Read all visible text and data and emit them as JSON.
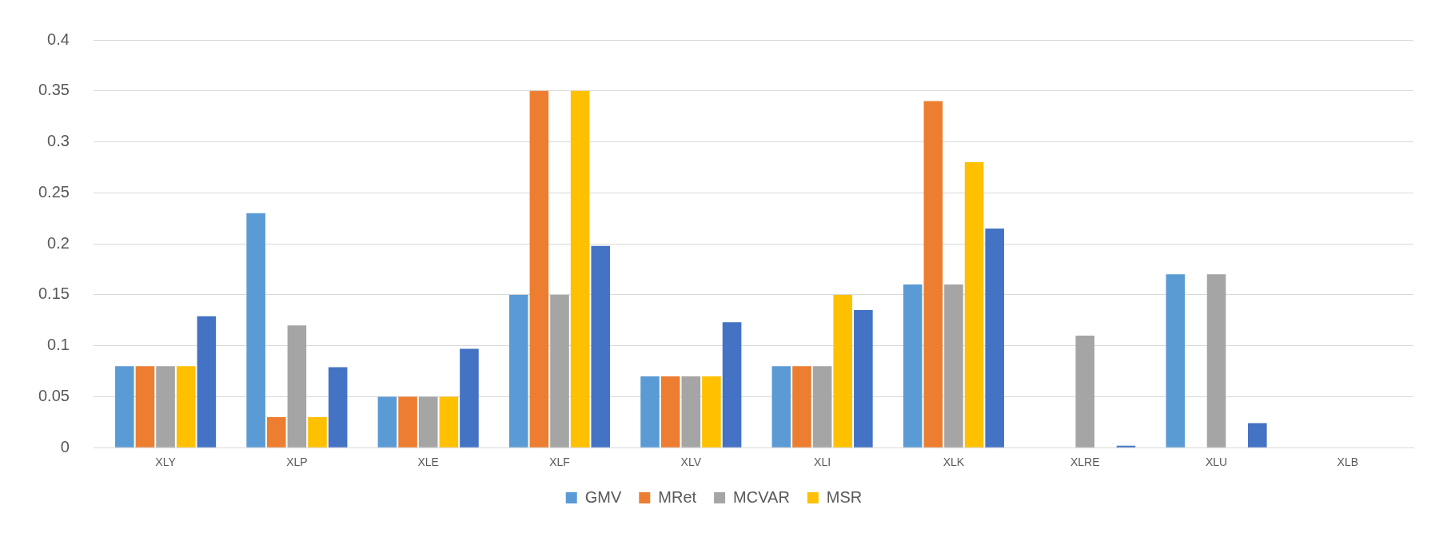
{
  "chart_data": {
    "type": "bar",
    "categories": [
      "XLY",
      "XLP",
      "XLE",
      "XLF",
      "XLV",
      "XLI",
      "XLK",
      "XLRE",
      "XLU",
      "XLB"
    ],
    "series": [
      {
        "name": "GMV",
        "color": "#5b9bd5",
        "values": [
          0.08,
          0.23,
          0.05,
          0.15,
          0.07,
          0.08,
          0.16,
          0,
          0.17,
          0
        ]
      },
      {
        "name": "MRet",
        "color": "#ed7d31",
        "values": [
          0.08,
          0.03,
          0.05,
          0.35,
          0.07,
          0.08,
          0.34,
          0,
          0,
          0
        ]
      },
      {
        "name": "MCVAR",
        "color": "#a5a5a5",
        "values": [
          0.08,
          0.12,
          0.05,
          0.15,
          0.07,
          0.08,
          0.16,
          0.11,
          0.17,
          0
        ]
      },
      {
        "name": "MSR",
        "color": "#ffc000",
        "values": [
          0.08,
          0.03,
          0.05,
          0.35,
          0.07,
          0.15,
          0.28,
          0,
          0,
          0
        ]
      },
      {
        "color": "#4472c4",
        "values": [
          0.129,
          0.079,
          0.097,
          0.198,
          0.123,
          0.135,
          0.215,
          0.002,
          0.024,
          0
        ]
      }
    ],
    "ylim": [
      0,
      0.4
    ],
    "yticks": [
      0,
      0.05,
      0.1,
      0.15,
      0.2,
      0.25,
      0.3,
      0.35,
      0.4
    ],
    "grid": "y",
    "legend": "bottom"
  }
}
